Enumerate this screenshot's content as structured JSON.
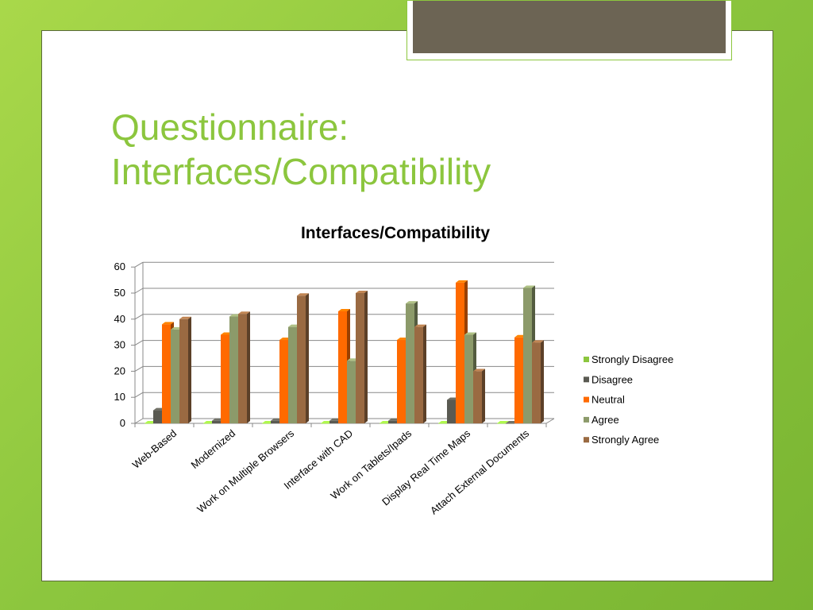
{
  "slide": {
    "title_line1": "Questionnaire:",
    "title_line2": "Interfaces/Compatibility"
  },
  "colors": {
    "background": "#8cc63e",
    "title": "#8cc63e",
    "header_block": "#6c6454"
  },
  "chart_data": {
    "type": "bar",
    "title": "Interfaces/Compatibility",
    "categories": [
      "Web-Based",
      "Modernized",
      "Work on Multiple Browsers",
      "Interface with CAD",
      "Work on Tablets/Ipads",
      "Display Real Time Maps",
      "Attach External Documents"
    ],
    "series": [
      {
        "name": "Strongly Disagree",
        "color": "#8cc63e",
        "values": [
          0,
          0,
          0,
          0,
          0,
          0,
          0
        ]
      },
      {
        "name": "Disagree",
        "color": "#5a5a52",
        "values": [
          5,
          1,
          1,
          1,
          1,
          9,
          0
        ]
      },
      {
        "name": "Neutral",
        "color": "#ff6a00",
        "values": [
          38,
          34,
          32,
          43,
          32,
          54,
          33
        ]
      },
      {
        "name": "Agree",
        "color": "#8c9a6a",
        "values": [
          36,
          41,
          37,
          24,
          46,
          34,
          52
        ]
      },
      {
        "name": "Strongly Agree",
        "color": "#9a6a42",
        "values": [
          40,
          42,
          49,
          50,
          37,
          20,
          31
        ]
      }
    ],
    "yticks": [
      "0",
      "10",
      "20",
      "30",
      "40",
      "50",
      "60"
    ],
    "ylim": [
      0,
      60
    ],
    "grid": true,
    "legend_position": "right"
  }
}
